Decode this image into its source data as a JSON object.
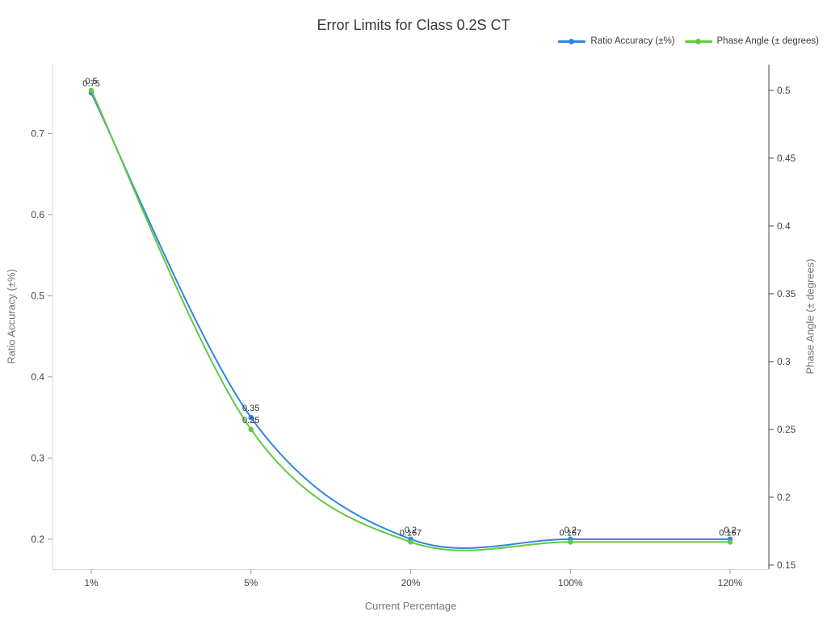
{
  "title": "Error Limits for Class 0.2S CT",
  "legend": [
    {
      "label": "Ratio Accuracy (±%)",
      "color": "#2f86e0"
    },
    {
      "label": "Phase Angle (± degrees)",
      "color": "#63c840"
    }
  ],
  "chart_data": {
    "type": "line",
    "title": "Error Limits for Class 0.2S CT",
    "line_shape": "spline",
    "grid": false,
    "legend_position": "top-right",
    "categories": [
      "1%",
      "5%",
      "20%",
      "100%",
      "120%"
    ],
    "series": [
      {
        "name": "Ratio Accuracy (±%)",
        "axis": "left",
        "color": "#2f86e0",
        "values": [
          0.75,
          0.35,
          0.2,
          0.2,
          0.2
        ],
        "labels": [
          "0.75",
          "0.35",
          "0.2",
          "0.2",
          "0.2"
        ]
      },
      {
        "name": "Phase Angle (± degrees)",
        "axis": "right",
        "color": "#63c840",
        "values": [
          0.5,
          0.25,
          0.167,
          0.167,
          0.167
        ],
        "labels": [
          "0.5",
          "0.25",
          "0.167",
          "0.167",
          "0.167"
        ]
      }
    ],
    "xlabel": "Current Percentage",
    "ylabel_left": "Ratio Accuracy (±%)",
    "ylabel_right": "Phase Angle (± degrees)",
    "left_axis": {
      "ticks": [
        0.2,
        0.3,
        0.4,
        0.5,
        0.6,
        0.7
      ],
      "range": [
        0.163,
        0.785
      ]
    },
    "right_axis": {
      "ticks": [
        0.15,
        0.2,
        0.25,
        0.3,
        0.35,
        0.4,
        0.45,
        0.5
      ],
      "range": [
        0.147,
        0.519
      ]
    },
    "colors": {
      "axis_line_light": "#d9d9d9",
      "axis_line_dark": "#444444",
      "tick_text": "#444444",
      "point_label_text": "#2f2f2f"
    }
  }
}
